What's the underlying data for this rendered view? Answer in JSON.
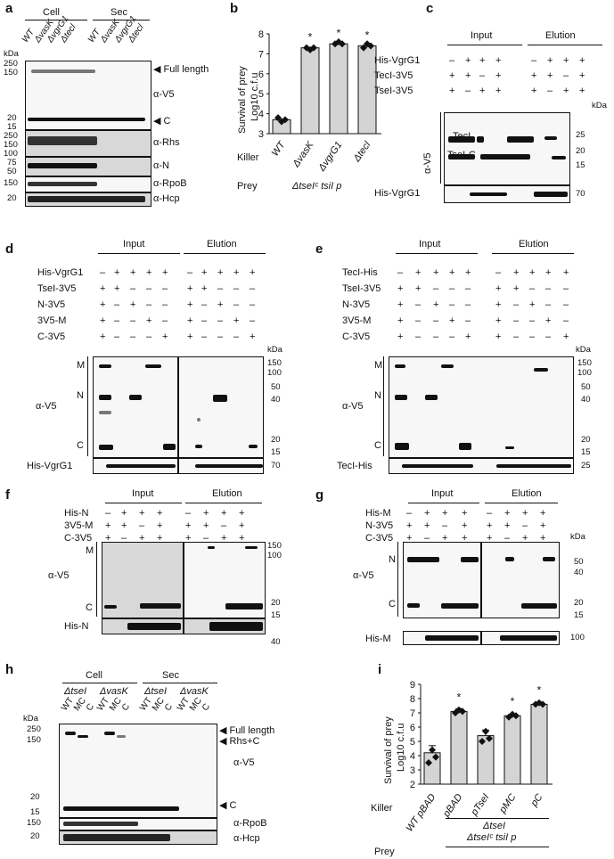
{
  "panel_labels": [
    "a",
    "b",
    "c",
    "d",
    "e",
    "f",
    "g",
    "h",
    "i"
  ],
  "kda": "kDa",
  "panel_a": {
    "groups": [
      "Cell",
      "Sec"
    ],
    "lanes": [
      "WT",
      "ΔvasK",
      "ΔvgrG1",
      "Δtecl",
      "WT",
      "ΔvasK",
      "ΔvgrG1",
      "Δtecl"
    ],
    "markers_top": [
      "250",
      "150",
      "20",
      "15"
    ],
    "markers_rhs": [
      "250",
      "150",
      "100"
    ],
    "markers_n": [
      "75",
      "50"
    ],
    "marker_rpob": "150",
    "marker_hcp": "20",
    "labels": {
      "full_length": "◀ Full length",
      "av5": "α-V5",
      "c": "◀ C",
      "rhs": "α-Rhs",
      "n": "α-N",
      "rpob": "α-RpoB",
      "hcp": "α-Hcp"
    }
  },
  "panel_b": {
    "ylabel": "Survival of prey",
    "ylabel2": "Log10 c.f.u",
    "killer_label": "Killer",
    "prey_label": "Prey",
    "prey_value": "ΔtseIᶜ tsiI p",
    "ticks": [
      "8",
      "7",
      "6",
      "5",
      "4",
      "3"
    ],
    "chart_data": {
      "type": "bar",
      "categories": [
        "WT",
        "ΔvasK",
        "ΔvgrG1",
        "Δtecl"
      ],
      "values": [
        3.7,
        7.3,
        7.5,
        7.4
      ],
      "points": [
        [
          3.8,
          3.6,
          3.7
        ],
        [
          7.3,
          7.2,
          7.3
        ],
        [
          7.5,
          7.6,
          7.5
        ],
        [
          7.3,
          7.5,
          7.4
        ]
      ],
      "significance": [
        "",
        "*",
        "*",
        "*"
      ],
      "ylim": [
        3,
        8
      ],
      "ylabel": "Survival of prey Log10 c.f.u"
    }
  },
  "panel_c": {
    "groups": [
      "Input",
      "Elution"
    ],
    "rows": [
      {
        "label": "His-VgrG1",
        "values": [
          "–",
          "+",
          "+",
          "+",
          "–",
          "+",
          "+",
          "+"
        ]
      },
      {
        "label": "TecI-3V5",
        "values": [
          "+",
          "+",
          "–",
          "+",
          "+",
          "+",
          "–",
          "+"
        ]
      },
      {
        "label": "TseI-3V5",
        "values": [
          "+",
          "–",
          "+",
          "+",
          "+",
          "–",
          "+",
          "+"
        ]
      }
    ],
    "markers": [
      "25",
      "20",
      "15"
    ],
    "marker_his": "70",
    "av5": "α-V5",
    "band_labels": [
      "TecI",
      "TseI-C"
    ],
    "his": "His-VgrG1"
  },
  "panel_d": {
    "groups": [
      "Input",
      "Elution"
    ],
    "rows": [
      {
        "label": "His-VgrG1",
        "values": [
          "–",
          "+",
          "+",
          "+",
          "+",
          "–",
          "+",
          "+",
          "+",
          "+"
        ]
      },
      {
        "label": "TseI-3V5",
        "values": [
          "+",
          "+",
          "–",
          "–",
          "–",
          "+",
          "+",
          "–",
          "–",
          "–"
        ]
      },
      {
        "label": "N-3V5",
        "values": [
          "+",
          "–",
          "+",
          "–",
          "–",
          "+",
          "–",
          "+",
          "–",
          "–"
        ]
      },
      {
        "label": "3V5-M",
        "values": [
          "+",
          "–",
          "–",
          "+",
          "–",
          "+",
          "–",
          "–",
          "+",
          "–"
        ]
      },
      {
        "label": "C-3V5",
        "values": [
          "+",
          "–",
          "–",
          "–",
          "+",
          "+",
          "–",
          "–",
          "–",
          "+"
        ]
      }
    ],
    "markers": [
      "150",
      "100",
      "50",
      "40",
      "20",
      "15"
    ],
    "marker_his": "70",
    "av5": "α-V5",
    "band_labels": [
      "M",
      "N",
      "C"
    ],
    "his": "His-VgrG1"
  },
  "panel_e": {
    "groups": [
      "Input",
      "Elution"
    ],
    "rows": [
      {
        "label": "TecI-His",
        "values": [
          "–",
          "+",
          "+",
          "+",
          "+",
          "–",
          "+",
          "+",
          "+",
          "+"
        ]
      },
      {
        "label": "TseI-3V5",
        "values": [
          "+",
          "+",
          "–",
          "–",
          "–",
          "+",
          "+",
          "–",
          "–",
          "–"
        ]
      },
      {
        "label": "N-3V5",
        "values": [
          "+",
          "–",
          "+",
          "–",
          "–",
          "+",
          "–",
          "+",
          "–",
          "–"
        ]
      },
      {
        "label": "3V5-M",
        "values": [
          "+",
          "–",
          "–",
          "+",
          "–",
          "+",
          "–",
          "–",
          "+",
          "–"
        ]
      },
      {
        "label": "C-3V5",
        "values": [
          "+",
          "–",
          "–",
          "–",
          "+",
          "+",
          "–",
          "–",
          "–",
          "+"
        ]
      }
    ],
    "markers": [
      "150",
      "100",
      "50",
      "40",
      "20",
      "15"
    ],
    "marker_his": "25",
    "av5": "α-V5",
    "band_labels": [
      "M",
      "N",
      "C"
    ],
    "his": "TecI-His"
  },
  "panel_f": {
    "groups": [
      "Input",
      "Elution"
    ],
    "rows": [
      {
        "label": "His-N",
        "values": [
          "–",
          "+",
          "+",
          "+",
          "–",
          "+",
          "+",
          "+"
        ]
      },
      {
        "label": "3V5-M",
        "values": [
          "+",
          "+",
          "–",
          "+",
          "+",
          "+",
          "–",
          "+"
        ]
      },
      {
        "label": "C-3V5",
        "values": [
          "+",
          "–",
          "+",
          "+",
          "+",
          "–",
          "+",
          "+"
        ]
      }
    ],
    "markers": [
      "150",
      "100",
      "20",
      "15"
    ],
    "marker_his": "40",
    "av5": "α-V5",
    "band_labels": [
      "M",
      "C"
    ],
    "his": "His-N"
  },
  "panel_g": {
    "groups": [
      "Input",
      "Elution"
    ],
    "rows": [
      {
        "label": "His-M",
        "values": [
          "–",
          "+",
          "+",
          "+",
          "–",
          "+",
          "+",
          "+"
        ]
      },
      {
        "label": "N-3V5",
        "values": [
          "+",
          "+",
          "–",
          "+",
          "+",
          "+",
          "–",
          "+"
        ]
      },
      {
        "label": "C-3V5",
        "values": [
          "+",
          "–",
          "+",
          "+",
          "+",
          "–",
          "+",
          "+"
        ]
      }
    ],
    "markers": [
      "50",
      "40",
      "20",
      "15"
    ],
    "marker_his": "100",
    "av5": "α-V5",
    "band_labels": [
      "N",
      "C"
    ],
    "his": "His-M"
  },
  "panel_h": {
    "groups": [
      "Cell",
      "Sec"
    ],
    "subgroups": [
      "ΔtseI",
      "ΔvasK",
      "ΔtseI",
      "ΔvasK"
    ],
    "lanes": [
      "WT",
      "MC",
      "C",
      "WT",
      "MC",
      "C",
      "WT",
      "MC",
      "C",
      "WT",
      "MC",
      "C"
    ],
    "markers_top": [
      "250",
      "150",
      "20",
      "15"
    ],
    "marker_rpob": "150",
    "marker_hcp": "20",
    "labels": {
      "full_length": "◀ Full length",
      "rhsc": "◀ Rhs+C",
      "av5": "α-V5",
      "c": "◀ C",
      "rpob": "α-RpoB",
      "hcp": "α-Hcp"
    }
  },
  "panel_i": {
    "ylabel": "Survival of prey",
    "ylabel2": "Log10 c.f.u",
    "killer_label": "Killer",
    "prey_label": "Prey",
    "group_line1": "ΔtseI",
    "group_line2": "ΔtseIᶜ tsiI p",
    "ticks": [
      "9",
      "8",
      "7",
      "6",
      "5",
      "4",
      "3",
      "2"
    ],
    "chart_data": {
      "type": "bar",
      "categories": [
        "WT pBAD",
        "pBAD",
        "pTseI",
        "pMC",
        "pC"
      ],
      "values": [
        4.2,
        7.1,
        5.4,
        6.8,
        7.6
      ],
      "errors": [
        0.5,
        0.2,
        0.4,
        0.1,
        0.1
      ],
      "points": [
        [
          3.5,
          4.4,
          3.9
        ],
        [
          7.0,
          7.2,
          7.1
        ],
        [
          5.0,
          5.7,
          5.2
        ],
        [
          6.7,
          6.9,
          6.8
        ],
        [
          7.6,
          7.7,
          7.6
        ]
      ],
      "significance": [
        "",
        "*",
        "",
        "*",
        "*"
      ],
      "ylim": [
        2,
        9
      ],
      "ylabel": "Survival of prey Log10 c.f.u"
    }
  }
}
